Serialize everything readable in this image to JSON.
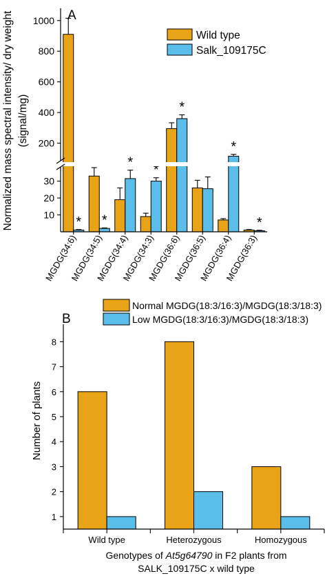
{
  "chart_data": [
    {
      "panel_label": "A",
      "type": "bar",
      "ylabel": "Normalized mass spectral intensity/ dry weight (signal/mg)",
      "ylabel_line1": "Normalized mass spectral intensity/ dry weight",
      "ylabel_line2": "(signal/mg)",
      "axis_break": true,
      "lower_ylim": [
        0,
        38
      ],
      "upper_ylim": [
        90,
        1080
      ],
      "lower_yticks": [
        "10",
        "20",
        "30"
      ],
      "upper_yticks": [
        "200",
        "400",
        "600",
        "800",
        "1000"
      ],
      "categories": [
        "MGDG(34:6)",
        "MGDG(34:5)",
        "MGDG(34:4)",
        "MGDG(34:3)",
        "MGDG(36:6)",
        "MGDG(36:5)",
        "MGDG(36:4)",
        "MGDG(36:3)"
      ],
      "series": [
        {
          "name": "Wild type",
          "color": "#E8A317",
          "values": [
            910,
            33,
            19,
            9,
            295,
            26,
            7,
            1
          ],
          "errors": [
            105,
            5,
            7,
            2,
            38,
            4.5,
            0.8,
            0.3
          ]
        },
        {
          "name": "Salk_109175C",
          "color": "#5BBDEA",
          "values": [
            1,
            2,
            31.5,
            30,
            360,
            25.5,
            115,
            0.6
          ],
          "errors": [
            0.3,
            0.3,
            5,
            2,
            25,
            7,
            12,
            0.3
          ]
        }
      ],
      "significant": [
        false,
        true,
        false,
        true,
        false,
        true,
        false,
        true,
        false,
        true,
        false,
        false,
        false,
        true,
        false,
        true
      ],
      "significance_marker": "*",
      "legend_position": "top-right"
    },
    {
      "panel_label": "B",
      "type": "bar",
      "ylabel": "Number of plants",
      "ylim": [
        0.5,
        8.7
      ],
      "yticks": [
        "1",
        "2",
        "3",
        "4",
        "5",
        "6",
        "7",
        "8"
      ],
      "categories": [
        "Wild type",
        "Heterozygous",
        "Homozygous"
      ],
      "series": [
        {
          "name": "Normal MGDG(18:3/16:3)/MGDG(18:3/18:3)",
          "color": "#E8A317",
          "values": [
            6,
            8,
            3
          ]
        },
        {
          "name": "Low MGDG(18:3/16:3)/MGDG(18:3/18:3)",
          "color": "#5BBDEA",
          "values": [
            1,
            2,
            1
          ]
        }
      ],
      "xlabel_prefix": "Genotypes of ",
      "xlabel_gene": "At5g64790",
      "xlabel_suffix": " in F2 plants from",
      "xlabel_line2": "SALK_109175C x wild type",
      "legend_position": "top-left"
    }
  ]
}
